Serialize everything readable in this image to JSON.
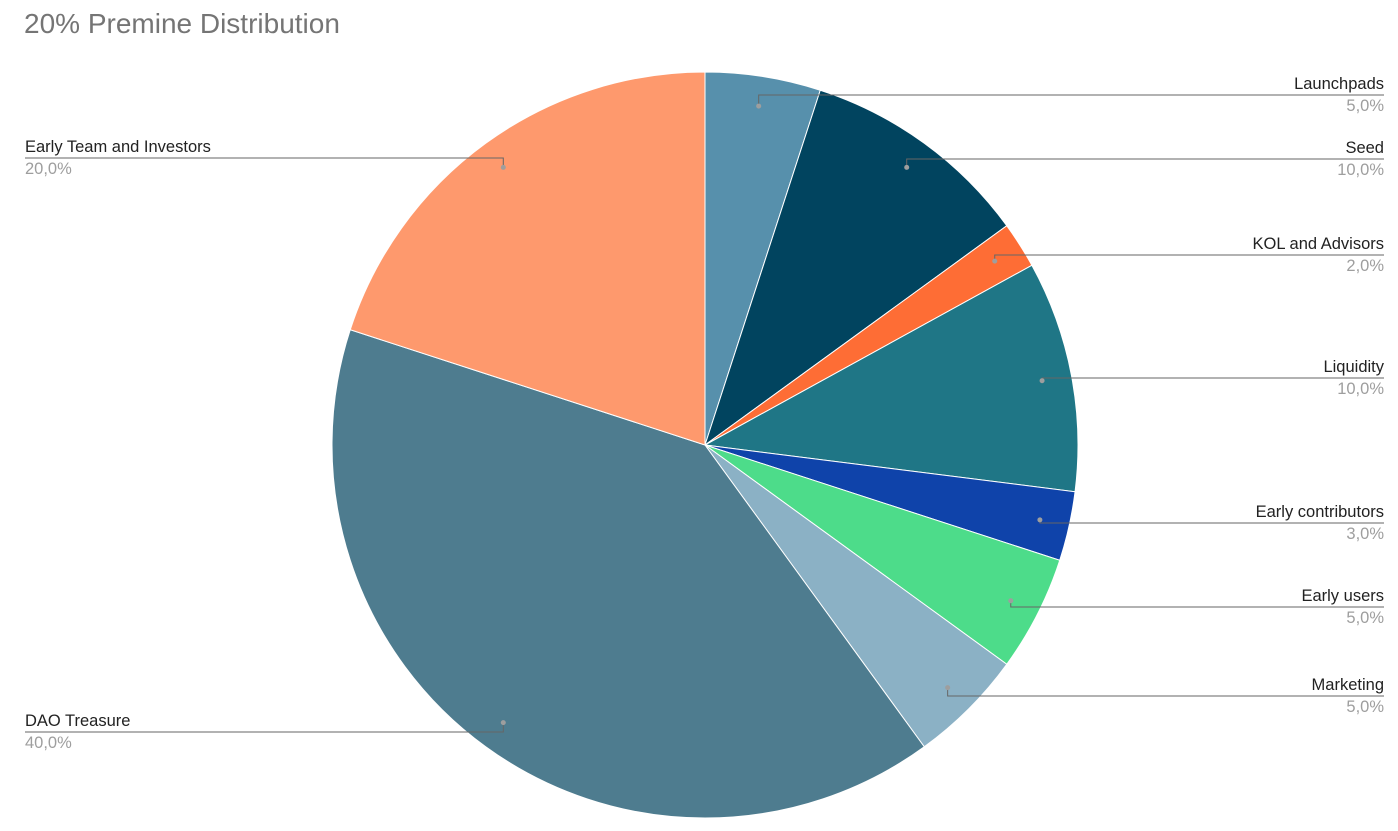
{
  "chart_data": {
    "type": "pie",
    "title": "20% Premine Distribution",
    "legend": "labels",
    "slices": [
      {
        "label": "Launchpads",
        "value": 5.0,
        "percent_label": "5,0%",
        "color": "#5790ac",
        "side": "right"
      },
      {
        "label": "Seed",
        "value": 10.0,
        "percent_label": "10,0%",
        "color": "#01445f",
        "side": "right"
      },
      {
        "label": "KOL and Advisors",
        "value": 2.0,
        "percent_label": "2,0%",
        "color": "#fe6d35",
        "side": "right"
      },
      {
        "label": "Liquidity",
        "value": 10.0,
        "percent_label": "10,0%",
        "color": "#1f7686",
        "side": "right"
      },
      {
        "label": "Early contributors",
        "value": 3.0,
        "percent_label": "3,0%",
        "color": "#0f43aa",
        "side": "right"
      },
      {
        "label": "Early users",
        "value": 5.0,
        "percent_label": "5,0%",
        "color": "#4ddc8a",
        "side": "right"
      },
      {
        "label": "Marketing",
        "value": 5.0,
        "percent_label": "5,0%",
        "color": "#8bb1c5",
        "side": "right"
      },
      {
        "label": "DAO Treasure",
        "value": 40.0,
        "percent_label": "40,0%",
        "color": "#4e7c8f",
        "side": "left"
      },
      {
        "label": "Early Team and Investors",
        "value": 20.0,
        "percent_label": "20,0%",
        "color": "#fe996d",
        "side": "left"
      }
    ]
  }
}
